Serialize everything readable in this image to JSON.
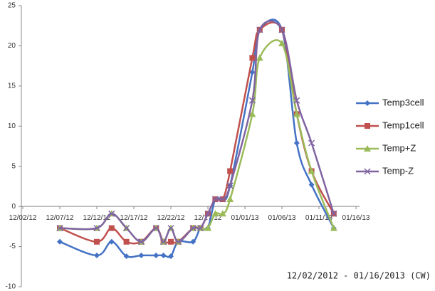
{
  "chart_data": {
    "type": "line",
    "annotation": "12/02/2012 - 01/16/2013 (CW)",
    "x": [
      "2012-12-07",
      "2012-12-12",
      "2012-12-14",
      "2012-12-16",
      "2012-12-18",
      "2012-12-20",
      "2012-12-21",
      "2012-12-22",
      "2012-12-23",
      "2012-12-25",
      "2012-12-26",
      "2012-12-27",
      "2012-12-28",
      "2012-12-29",
      "2012-12-30",
      "2013-01-02",
      "2013-01-03",
      "2013-01-06",
      "2013-01-08",
      "2013-01-10",
      "2013-01-13"
    ],
    "series": [
      {
        "name": "Temp3cell",
        "color": "#4472c4",
        "marker": "diamond",
        "values": [
          -4.4,
          -6.1,
          -4.4,
          -6.2,
          -6.1,
          -6.1,
          -6.1,
          -6.2,
          -4.4,
          -4.4,
          -2.7,
          -2.7,
          0.9,
          0.9,
          2.6,
          16.7,
          22,
          22,
          7.9,
          2.7,
          -2.7
        ]
      },
      {
        "name": "Temp1cell",
        "color": "#c0504d",
        "marker": "square",
        "values": [
          -2.7,
          -4.4,
          -2.7,
          -4.4,
          -4.4,
          -2.7,
          -4.4,
          -4.4,
          -4.4,
          -2.7,
          -2.7,
          -0.9,
          0.9,
          0.9,
          4.4,
          18.5,
          22,
          22,
          11.5,
          4.4,
          -0.9
        ]
      },
      {
        "name": "Temp+Z",
        "color": "#9bbb59",
        "marker": "triangle",
        "values": [
          -2.7,
          -2.7,
          -0.9,
          -2.7,
          -4.4,
          -2.7,
          -4.4,
          -2.7,
          -4.4,
          -2.7,
          -2.7,
          -2.7,
          -0.9,
          -0.9,
          0.9,
          11.5,
          18.5,
          20.3,
          11.5,
          4.4,
          -2.7
        ]
      },
      {
        "name": "Temp-Z",
        "color": "#8064a2",
        "marker": "x",
        "values": [
          -2.7,
          -2.7,
          -0.9,
          -2.7,
          -4.4,
          -2.7,
          -4.4,
          -2.7,
          -4.4,
          -2.7,
          -2.7,
          -0.9,
          0.9,
          0.9,
          2.6,
          13.2,
          22,
          22,
          13.2,
          7.9,
          -0.9
        ]
      }
    ],
    "xlim": [
      "2012-12-02",
      "2013-01-16"
    ],
    "xticks": [
      {
        "value": "2012-12-02",
        "label": "12/02/12"
      },
      {
        "value": "2012-12-07",
        "label": "12/07/12"
      },
      {
        "value": "2012-12-12",
        "label": "12/12/12"
      },
      {
        "value": "2012-12-17",
        "label": "12/17/12"
      },
      {
        "value": "2012-12-22",
        "label": "12/22/12"
      },
      {
        "value": "2012-12-27",
        "label": "12/27/12"
      },
      {
        "value": "2013-01-01",
        "label": "01/01/13"
      },
      {
        "value": "2013-01-06",
        "label": "01/06/13"
      },
      {
        "value": "2013-01-11",
        "label": "01/11/13"
      },
      {
        "value": "2013-01-16",
        "label": "01/16/13"
      }
    ],
    "ylim": [
      -10,
      25
    ],
    "yticks": [
      -10,
      -5,
      0,
      5,
      10,
      15,
      20,
      25
    ],
    "grid": false,
    "legend": "right",
    "smooth": true
  }
}
